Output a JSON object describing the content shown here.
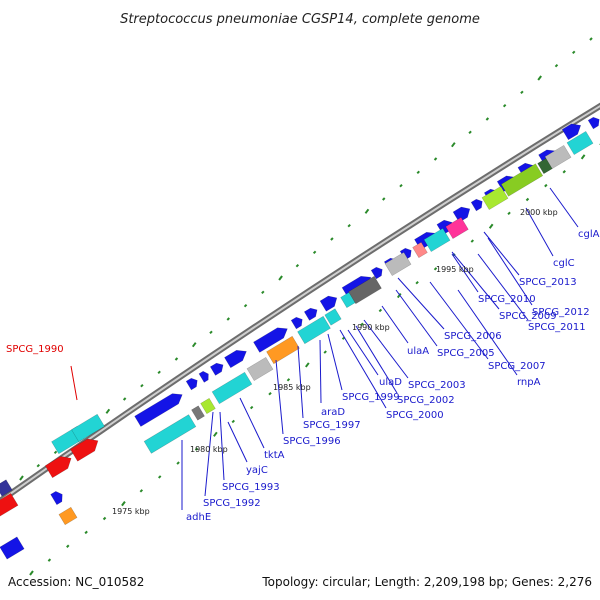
{
  "title": "Streptococcus pneumoniae CGSP14, complete genome",
  "footer": {
    "accession": "Accession: NC_010582",
    "stats": "Topology: circular; Length: 2,209,198 bp; Genes: 2,276"
  },
  "kbp_labels": [
    "1975 kbp",
    "1980 kbp",
    "1985 kbp",
    "1990 kbp",
    "1995 kbp",
    "2000 kbp"
  ],
  "gene_labels": [
    "SPCG_1990",
    "adhE",
    "SPCG_1992",
    "SPCG_1993",
    "yajC",
    "tktA",
    "SPCG_1996",
    "araD",
    "SPCG_1997",
    "SPCG_1999",
    "SPCG_2000",
    "ulaD",
    "SPCG_2002",
    "SPCG_2003",
    "ulaA",
    "SPCG_2005",
    "SPCG_2006",
    "SPCG_2007",
    "rnpA",
    "SPCG_2009",
    "SPCG_2010",
    "SPCG_2011",
    "SPCG_2012",
    "SPCG_2013",
    "cglC",
    "cglA"
  ],
  "colors": {
    "backbone": "#9a9a9a",
    "gene_blue": "#1414e6",
    "gene_cyan": "#22d4d4",
    "gene_red": "#ee1111",
    "gene_orange": "#ff9922",
    "gene_lime": "#a8e830",
    "gene_gray": "#777777",
    "gene_pink": "#ff3399",
    "label_blue": "#1a1acc",
    "label_red": "#e00000",
    "tick_green": "#2a8a2a"
  }
}
